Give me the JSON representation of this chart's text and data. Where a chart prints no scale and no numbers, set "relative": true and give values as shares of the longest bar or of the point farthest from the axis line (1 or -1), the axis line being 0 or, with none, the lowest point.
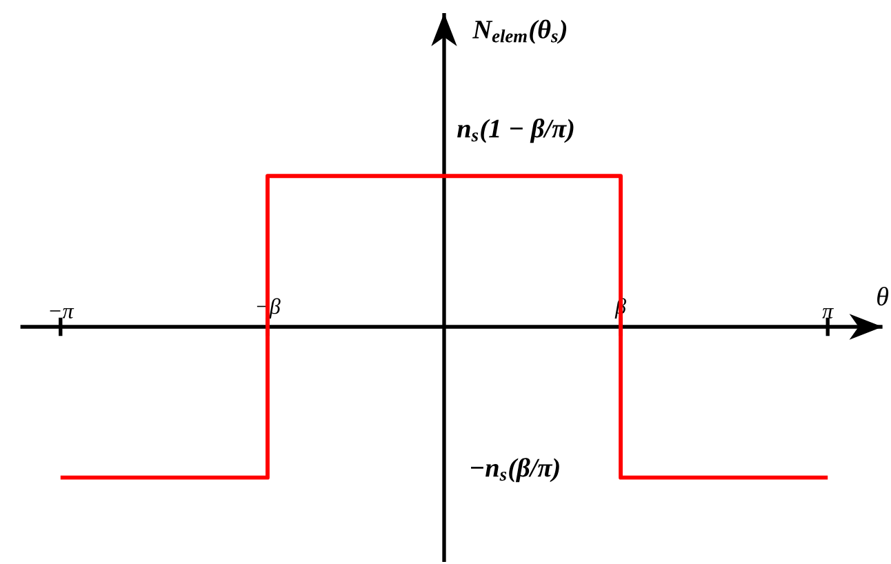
{
  "chart_data": {
    "type": "line",
    "relative": true,
    "xlabel": "θ",
    "ylabel": "N$_{elem}$(θ$_{s}$)",
    "series": [
      {
        "color": "#ff0000",
        "x": [
          -3.1416,
          -1.446,
          -1.446,
          1.446,
          1.446,
          3.1416
        ],
        "values": [
          -1,
          -1,
          1,
          1,
          -1,
          -1
        ]
      }
    ],
    "xlim": [
      -3.47,
      3.59
    ],
    "xticks": [
      {
        "value": -3.1416,
        "label": "−π"
      },
      {
        "value": -1.446,
        "label": "−β"
      },
      {
        "value": 1.446,
        "label": "β"
      },
      {
        "value": 3.1416,
        "label": "π"
      }
    ],
    "annotations": [
      "n$_{s}$(1 − β/π)",
      "−n$_{s}$(β/π)"
    ],
    "marker": "none",
    "line_style": "solid"
  }
}
